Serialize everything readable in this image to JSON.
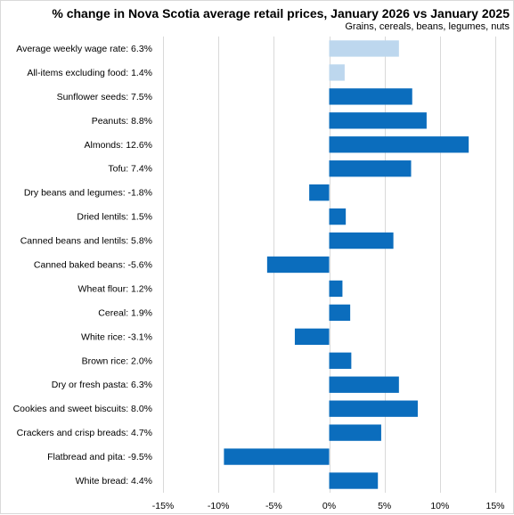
{
  "chart_data": {
    "type": "bar",
    "orientation": "horizontal",
    "title": "% change in Nova Scotia average retail prices, January 2026 vs January 2025",
    "subtitle": "Grains, cereals, beans, legumes, nuts",
    "categories": [
      "Average weekly wage rate: 6.3%",
      "All-items excluding food: 1.4%",
      "Sunflower seeds: 7.5%",
      "Peanuts: 8.8%",
      "Almonds: 12.6%",
      "Tofu: 7.4%",
      "Dry beans and legumes: -1.8%",
      "Dried lentils: 1.5%",
      "Canned beans and lentils: 5.8%",
      "Canned baked beans: -5.6%",
      "Wheat flour: 1.2%",
      "Cereal: 1.9%",
      "White rice: -3.1%",
      "Brown rice: 2.0%",
      "Dry or fresh pasta: 6.3%",
      "Cookies and sweet biscuits: 8.0%",
      "Crackers and crisp breads: 4.7%",
      "Flatbread and pita: -9.5%",
      "White bread: 4.4%"
    ],
    "values": [
      6.3,
      1.4,
      7.5,
      8.8,
      12.6,
      7.4,
      -1.8,
      1.5,
      5.8,
      -5.6,
      1.2,
      1.9,
      -3.1,
      2.0,
      6.3,
      8.0,
      4.7,
      -9.5,
      4.4
    ],
    "bar_colors": [
      "#bdd7ee",
      "#bdd7ee",
      "#0b6dbd",
      "#0b6dbd",
      "#0b6dbd",
      "#0b6dbd",
      "#0b6dbd",
      "#0b6dbd",
      "#0b6dbd",
      "#0b6dbd",
      "#0b6dbd",
      "#0b6dbd",
      "#0b6dbd",
      "#0b6dbd",
      "#0b6dbd",
      "#0b6dbd",
      "#0b6dbd",
      "#0b6dbd",
      "#0b6dbd"
    ],
    "xlim": [
      -15,
      15
    ],
    "xticks": [
      -15,
      -10,
      -5,
      0,
      5,
      10,
      15
    ],
    "xtick_labels": [
      "-15%",
      "-10%",
      "-5%",
      "0%",
      "5%",
      "10%",
      "15%"
    ],
    "grid": "vertical",
    "legend": "none"
  }
}
